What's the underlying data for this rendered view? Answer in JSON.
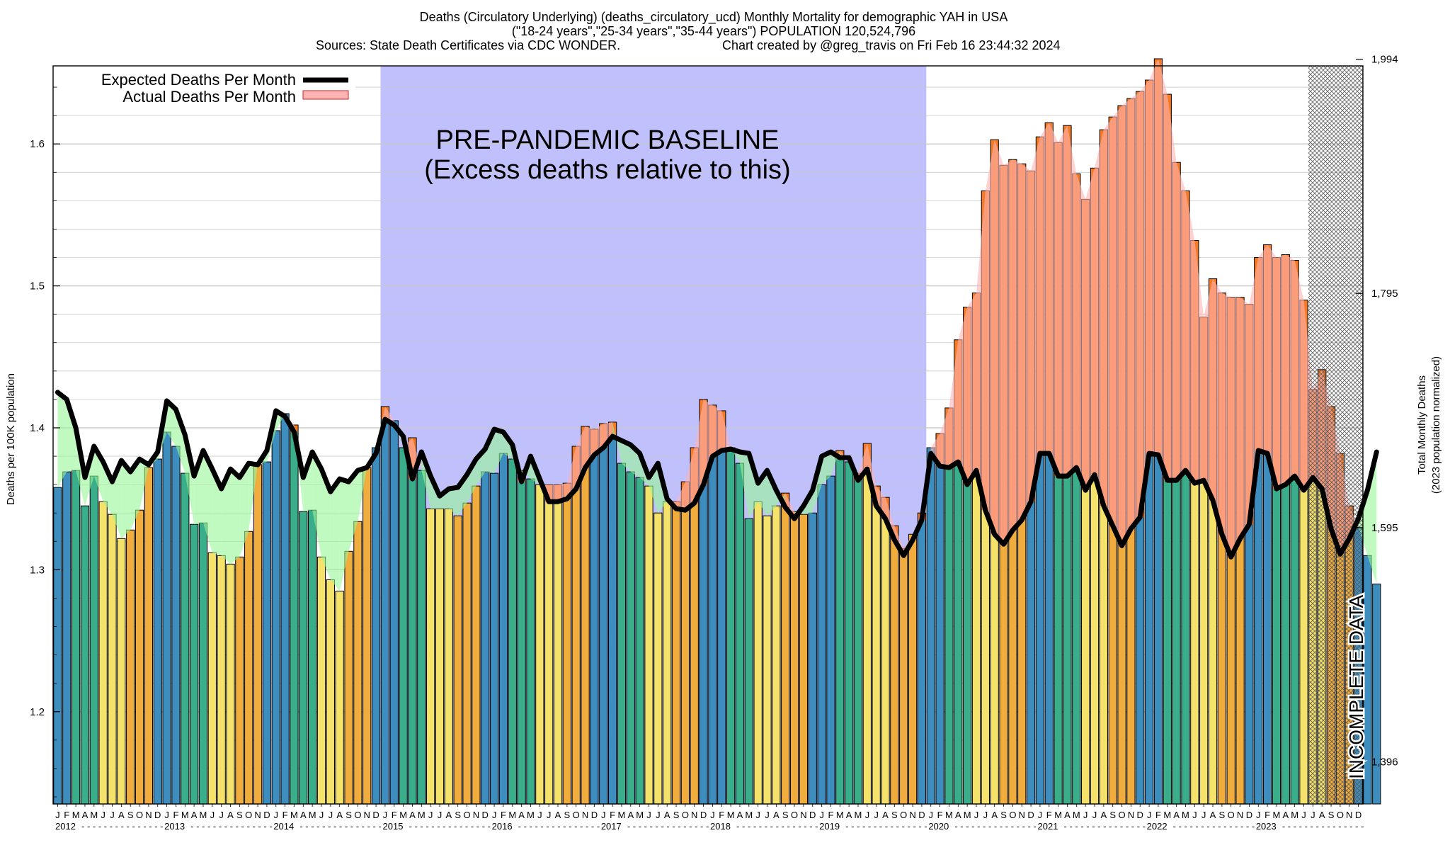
{
  "chart_data": {
    "type": "bar",
    "title": "Deaths (Circulatory Underlying) (deaths_circulatory_ucd) Monthly Mortality for demographic YAH in USA",
    "subtitle": "(\"18-24 years\",\"25-34 years\",\"35-44 years\") POPULATION 120,524,796",
    "sources": "Sources: State Death Certificates via CDC WONDER.",
    "credit": "Chart created by @greg_travis on Fri Feb 16 23:44:32 2024",
    "ylabel": "Deaths per 100K population",
    "y2label_line1": "Total Monthly Deaths",
    "y2label_line2": "(2023 population normalized)",
    "ylim": [
      1.135,
      1.655
    ],
    "y_ticks": [
      1.2,
      1.3,
      1.4,
      1.5,
      1.6
    ],
    "y_tick_labels": [
      "1.2",
      "1.3",
      "1.4",
      "1.5",
      "1.6"
    ],
    "y2_ticks": [
      {
        "at": 1.1646,
        "label": "1,396"
      },
      {
        "at": 1.3296,
        "label": "1,595"
      },
      {
        "at": 1.4947,
        "label": "1,795"
      },
      {
        "at": 1.6597,
        "label": "1,994"
      }
    ],
    "month_letters": [
      "J",
      "F",
      "M",
      "A",
      "M",
      "J",
      "J",
      "A",
      "S",
      "O",
      "N",
      "D"
    ],
    "years": [
      "2012",
      "2013",
      "2014",
      "2015",
      "2016",
      "2017",
      "2018",
      "2019",
      "2020",
      "2021",
      "2022",
      "2023"
    ],
    "legend": [
      {
        "label": "Expected Deaths Per Month",
        "kind": "line"
      },
      {
        "label": "Actual Deaths Per Month",
        "kind": "area"
      }
    ],
    "baseline_label_line1": "PRE-PANDEMIC BASELINE",
    "baseline_label_line2": "(Excess deaths relative to this)",
    "baseline_period": {
      "start_index": 36,
      "end_index": 95
    },
    "incomplete_label": "INCOMPLETE DATA",
    "incomplete_start_index": 138,
    "season_colors": {
      "winter": "#3d8ebf",
      "spring": "#3aae8b",
      "summer": "#f4e26a",
      "autumn": "#f0ad3e",
      "excess": "#f47a26",
      "deficit_fill": "#98f798",
      "excess_fill": "#ffb4b4",
      "baseline_bg": "#c0c0fd"
    },
    "actual": [
      1.358,
      1.369,
      1.37,
      1.345,
      1.366,
      1.348,
      1.339,
      1.322,
      1.328,
      1.342,
      1.372,
      1.378,
      1.397,
      1.387,
      1.368,
      1.332,
      1.333,
      1.312,
      1.31,
      1.304,
      1.309,
      1.327,
      1.374,
      1.376,
      1.398,
      1.41,
      1.402,
      1.341,
      1.342,
      1.309,
      1.293,
      1.285,
      1.313,
      1.334,
      1.372,
      1.386,
      1.415,
      1.405,
      1.386,
      1.393,
      1.37,
      1.343,
      1.343,
      1.343,
      1.338,
      1.347,
      1.359,
      1.369,
      1.368,
      1.382,
      1.378,
      1.37,
      1.364,
      1.36,
      1.36,
      1.36,
      1.361,
      1.387,
      1.401,
      1.399,
      1.403,
      1.404,
      1.375,
      1.369,
      1.365,
      1.359,
      1.34,
      1.348,
      1.348,
      1.362,
      1.386,
      1.42,
      1.416,
      1.412,
      1.386,
      1.375,
      1.336,
      1.348,
      1.338,
      1.345,
      1.354,
      1.341,
      1.339,
      1.34,
      1.36,
      1.366,
      1.384,
      1.376,
      1.368,
      1.389,
      1.359,
      1.351,
      1.331,
      1.315,
      1.325,
      1.34,
      1.386,
      1.396,
      1.414,
      1.462,
      1.485,
      1.495,
      1.567,
      1.603,
      1.585,
      1.589,
      1.586,
      1.581,
      1.605,
      1.615,
      1.601,
      1.613,
      1.579,
      1.561,
      1.583,
      1.61,
      1.619,
      1.627,
      1.632,
      1.637,
      1.645,
      1.66,
      1.635,
      1.587,
      1.567,
      1.532,
      1.478,
      1.505,
      1.495,
      1.492,
      1.492,
      1.487,
      1.52,
      1.529,
      1.52,
      1.522,
      1.518,
      1.49,
      1.427,
      1.441,
      1.415,
      1.382,
      1.345,
      1.33,
      1.31,
      1.29
    ],
    "expected": [
      1.425,
      1.42,
      1.4,
      1.365,
      1.387,
      1.376,
      1.362,
      1.377,
      1.369,
      1.378,
      1.374,
      1.383,
      1.419,
      1.413,
      1.395,
      1.366,
      1.384,
      1.371,
      1.357,
      1.371,
      1.365,
      1.375,
      1.374,
      1.384,
      1.412,
      1.408,
      1.397,
      1.365,
      1.383,
      1.371,
      1.355,
      1.364,
      1.362,
      1.37,
      1.372,
      1.382,
      1.406,
      1.402,
      1.394,
      1.364,
      1.383,
      1.366,
      1.352,
      1.357,
      1.358,
      1.367,
      1.378,
      1.385,
      1.399,
      1.397,
      1.388,
      1.362,
      1.38,
      1.364,
      1.348,
      1.348,
      1.35,
      1.357,
      1.372,
      1.381,
      1.386,
      1.394,
      1.391,
      1.388,
      1.382,
      1.365,
      1.375,
      1.35,
      1.343,
      1.342,
      1.347,
      1.36,
      1.38,
      1.384,
      1.385,
      1.383,
      1.382,
      1.361,
      1.37,
      1.356,
      1.344,
      1.336,
      1.345,
      1.356,
      1.38,
      1.383,
      1.379,
      1.379,
      1.363,
      1.371,
      1.345,
      1.336,
      1.321,
      1.31,
      1.321,
      1.335,
      1.382,
      1.373,
      1.372,
      1.376,
      1.36,
      1.37,
      1.342,
      1.325,
      1.318,
      1.328,
      1.335,
      1.348,
      1.382,
      1.382,
      1.366,
      1.366,
      1.372,
      1.356,
      1.367,
      1.345,
      1.331,
      1.317,
      1.329,
      1.337,
      1.382,
      1.381,
      1.363,
      1.363,
      1.37,
      1.361,
      1.363,
      1.349,
      1.325,
      1.309,
      1.322,
      1.332,
      1.384,
      1.382,
      1.357,
      1.36,
      1.366,
      1.356,
      1.365,
      1.357,
      1.329,
      1.311,
      1.322,
      1.336,
      1.356,
      1.383
    ]
  }
}
